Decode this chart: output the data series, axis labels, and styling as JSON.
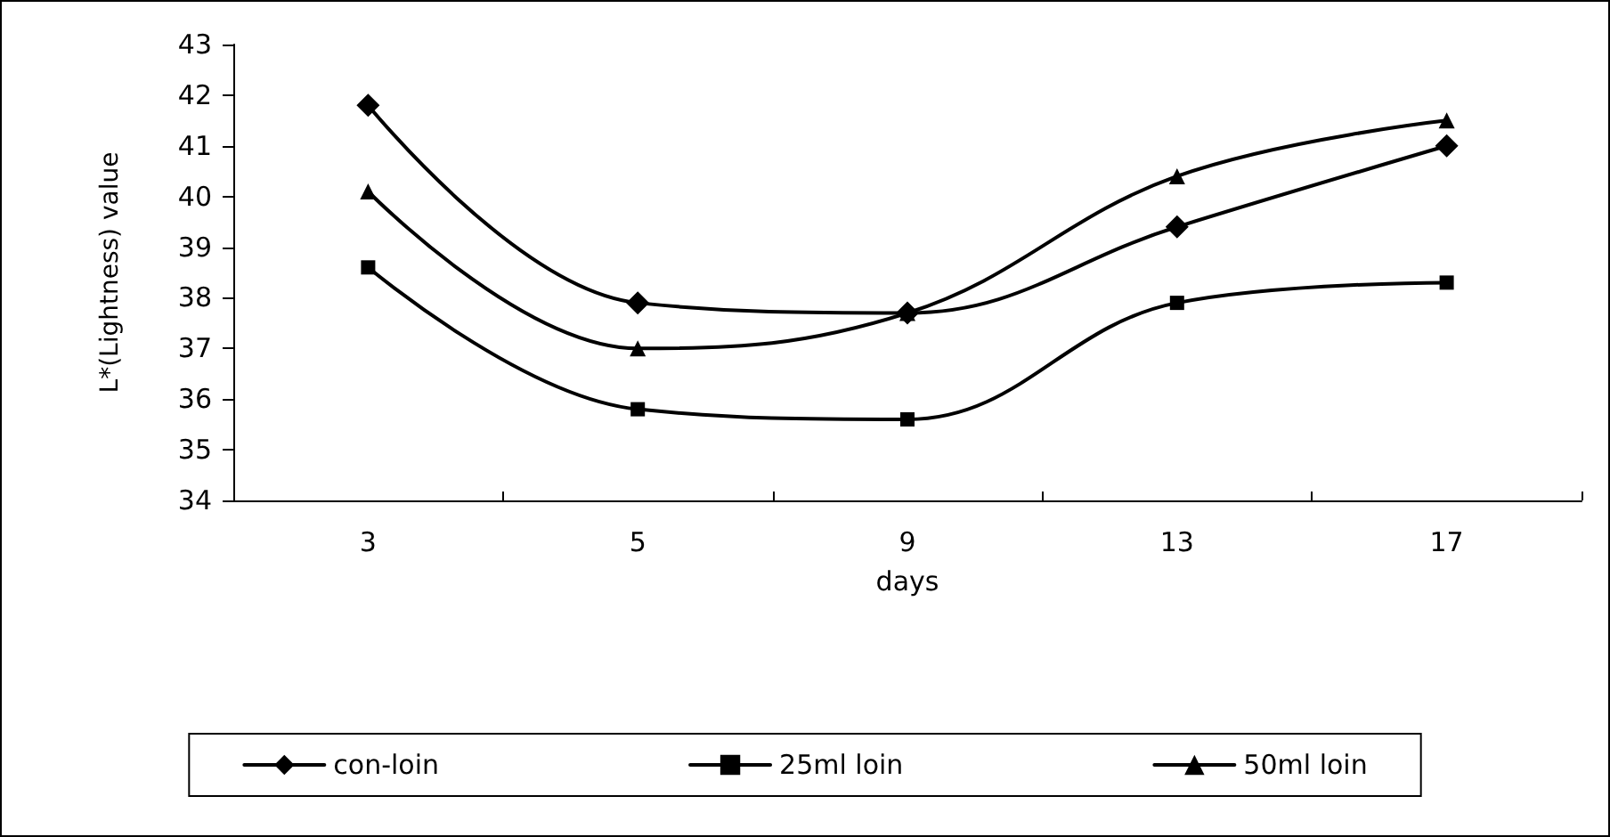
{
  "chart_data": {
    "type": "line",
    "xlabel": "days",
    "ylabel": "L*(Lightness) value",
    "categories": [
      "3",
      "5",
      "9",
      "13",
      "17"
    ],
    "series": [
      {
        "name": "con-loin",
        "color": "#000000",
        "marker": "diamond",
        "values": [
          41.8,
          37.9,
          37.7,
          39.4,
          41.0
        ]
      },
      {
        "name": "25ml loin",
        "color": "#000000",
        "marker": "square",
        "values": [
          38.6,
          35.8,
          35.6,
          37.9,
          38.3
        ]
      },
      {
        "name": "50ml loin",
        "color": "#000000",
        "marker": "triangle",
        "values": [
          40.1,
          37.0,
          37.7,
          40.4,
          41.5
        ]
      }
    ],
    "ylim": [
      34,
      43
    ],
    "yticks": [
      34,
      35,
      36,
      37,
      38,
      39,
      40,
      41,
      42,
      43
    ],
    "grid": false,
    "legend": "bottom",
    "line_style": "solid"
  }
}
